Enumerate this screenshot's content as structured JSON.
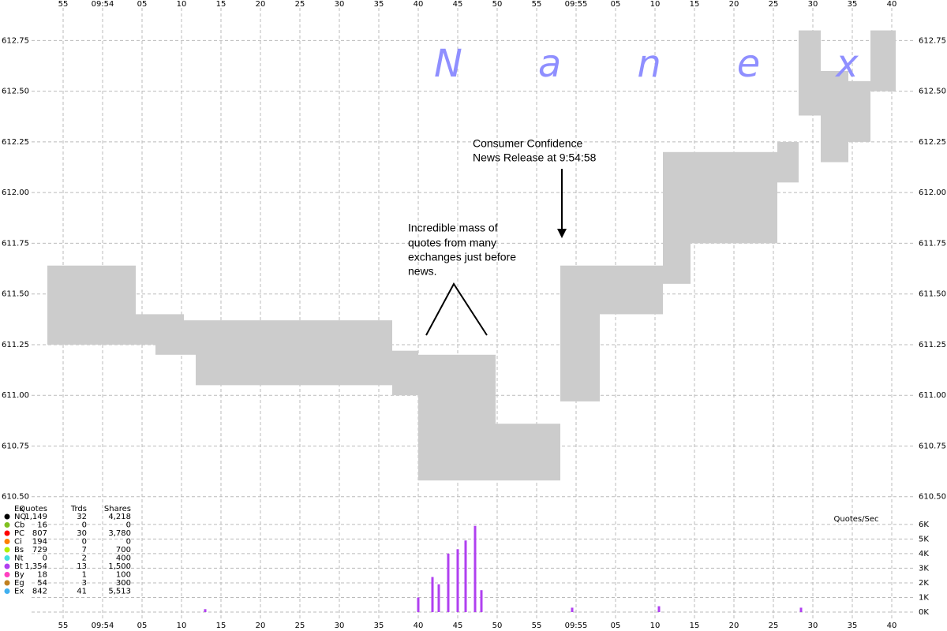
{
  "chart_data": {
    "type": "spread",
    "watermark": "Nanex",
    "x": [
      35633,
      35644.2,
      35646.7,
      35650.3,
      35651.8,
      35676.7,
      35680,
      35689.8,
      35698,
      35703,
      35711,
      35714.5,
      35725.5,
      35728.2,
      35731,
      35734.5,
      35737.3,
      35740.5
    ],
    "ask": [
      611.64,
      611.4,
      611.4,
      611.37,
      611.37,
      611.22,
      611.2,
      610.86,
      611.64,
      611.64,
      612.2,
      612.2,
      612.25,
      612.8,
      612.6,
      612.55,
      612.8
    ],
    "bid": [
      611.25,
      611.25,
      611.2,
      611.2,
      611.05,
      611.0,
      610.58,
      610.58,
      610.97,
      611.4,
      611.55,
      611.75,
      612.05,
      612.38,
      612.15,
      612.25,
      612.5
    ],
    "xlim": [
      35631,
      35743
    ],
    "xticks": [
      {
        "value": 35635,
        "label": "55"
      },
      {
        "value": 35640,
        "label": "09:54"
      },
      {
        "value": 35645,
        "label": "05"
      },
      {
        "value": 35650,
        "label": "10"
      },
      {
        "value": 35655,
        "label": "15"
      },
      {
        "value": 35660,
        "label": "20"
      },
      {
        "value": 35665,
        "label": "25"
      },
      {
        "value": 35670,
        "label": "30"
      },
      {
        "value": 35675,
        "label": "35"
      },
      {
        "value": 35680,
        "label": "40"
      },
      {
        "value": 35685,
        "label": "45"
      },
      {
        "value": 35690,
        "label": "50"
      },
      {
        "value": 35695,
        "label": "55"
      },
      {
        "value": 35700,
        "label": "09:55"
      },
      {
        "value": 35705,
        "label": "05"
      },
      {
        "value": 35710,
        "label": "10"
      },
      {
        "value": 35715,
        "label": "15"
      },
      {
        "value": 35720,
        "label": "20"
      },
      {
        "value": 35725,
        "label": "25"
      },
      {
        "value": 35730,
        "label": "30"
      },
      {
        "value": 35735,
        "label": "35"
      },
      {
        "value": 35740,
        "label": "40"
      }
    ],
    "ylim": [
      610.46,
      612.95
    ],
    "yticks": [
      {
        "value": 610.5,
        "label": "610.50"
      },
      {
        "value": 610.75,
        "label": "610.75"
      },
      {
        "value": 611,
        "label": "611.00"
      },
      {
        "value": 611.25,
        "label": "611.25"
      },
      {
        "value": 611.5,
        "label": "611.50"
      },
      {
        "value": 611.75,
        "label": "611.75"
      },
      {
        "value": 612,
        "label": "612.00"
      },
      {
        "value": 612.25,
        "label": "612.25"
      },
      {
        "value": 612.5,
        "label": "612.50"
      },
      {
        "value": 612.75,
        "label": "612.75"
      }
    ],
    "volume_label": "Quotes/Sec",
    "volume": {
      "x": [
        35653,
        35680,
        35681.8,
        35682.6,
        35683.8,
        35685,
        35686,
        35687.2,
        35688,
        35699.5,
        35710.5,
        35728.5
      ],
      "values": [
        0.2,
        1.0,
        2.4,
        1.9,
        4.0,
        4.3,
        4.9,
        5.9,
        1.5,
        0.3,
        0.4,
        0.3
      ]
    },
    "volume_color": "#b040f0",
    "y3lim": [
      0,
      6.1
    ],
    "y3ticks": [
      {
        "value": 0,
        "label": "0K"
      },
      {
        "value": 1,
        "label": "1K"
      },
      {
        "value": 2,
        "label": "2K"
      },
      {
        "value": 3,
        "label": "3K"
      },
      {
        "value": 4,
        "label": "4K"
      },
      {
        "value": 5,
        "label": "5K"
      },
      {
        "value": 6,
        "label": "6K"
      }
    ],
    "annotations": [
      {
        "lines": [
          "Consumer Confidence",
          "News Release at 9:54:58"
        ]
      },
      {
        "lines": [
          "Incredible mass of",
          "quotes from many",
          "exchanges just before",
          "news."
        ]
      }
    ],
    "legend": {
      "header": [
        "Ex",
        "Quotes",
        "Trds",
        "Shares"
      ],
      "rows": [
        {
          "color": "#000000",
          "cells": [
            "NQ",
            "1,149",
            "32",
            "4,218"
          ]
        },
        {
          "color": "#80c020",
          "cells": [
            "Cb",
            "16",
            "0",
            "0"
          ]
        },
        {
          "color": "#ff0000",
          "cells": [
            "PC",
            "807",
            "30",
            "3,780"
          ]
        },
        {
          "color": "#ff8000",
          "cells": [
            "Ci",
            "194",
            "0",
            "0"
          ]
        },
        {
          "color": "#b0f000",
          "cells": [
            "Bs",
            "729",
            "7",
            "700"
          ]
        },
        {
          "color": "#40e0e0",
          "cells": [
            "Nt",
            "0",
            "2",
            "400"
          ]
        },
        {
          "color": "#b040f0",
          "cells": [
            "Bt",
            "1,354",
            "13",
            "1,500"
          ]
        },
        {
          "color": "#ff40c0",
          "cells": [
            "By",
            "18",
            "1",
            "100"
          ]
        },
        {
          "color": "#c08020",
          "cells": [
            "Eg",
            "54",
            "3",
            "300"
          ]
        },
        {
          "color": "#40b0f0",
          "cells": [
            "Ex",
            "842",
            "41",
            "5,513"
          ]
        }
      ]
    }
  }
}
